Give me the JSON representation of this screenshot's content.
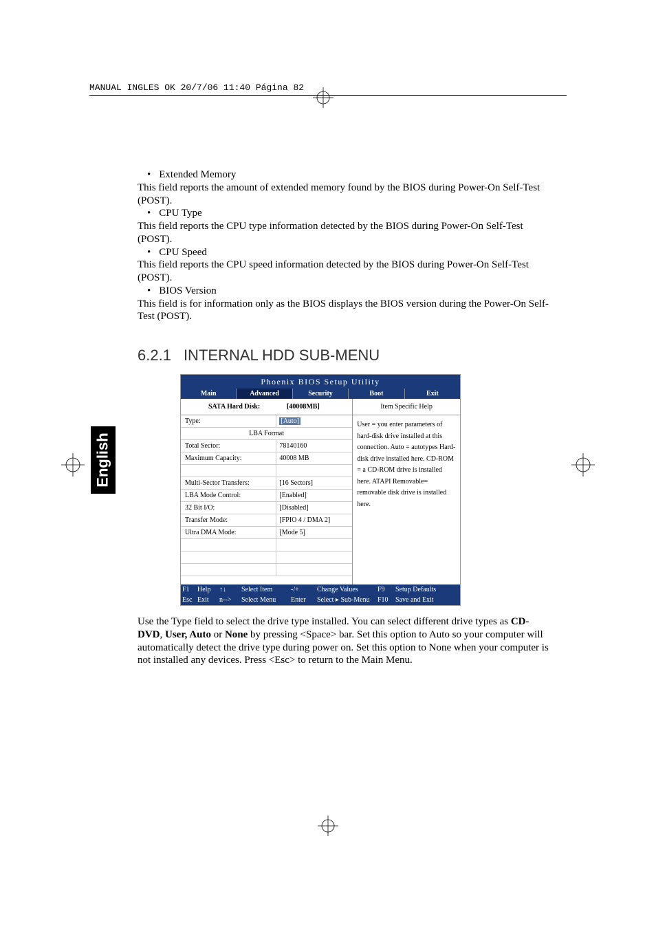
{
  "meta": {
    "header_line": "MANUAL INGLES OK  20/7/06  11:40  Página 82"
  },
  "colors": {
    "bios_blue": "#1a3a7a",
    "bios_dark": "#0d1f45",
    "bios_grid": "#cccccc",
    "bios_border": "#999999",
    "bios_arrow": "#5a7aa6",
    "tab_selected_bg": "#0b2252"
  },
  "intro": {
    "items": [
      {
        "bullet": "Extended Memory",
        "text": "This field reports the amount of extended memory found by the BIOS during Power-On Self-Test (POST)."
      },
      {
        "bullet": "CPU Type",
        "text": "This field reports the CPU type information detected by the BIOS during Power-On Self-Test (POST)."
      },
      {
        "bullet": "CPU Speed",
        "text": "This field reports the CPU speed information detected by the BIOS during Power-On Self-Test (POST)."
      },
      {
        "bullet": "BIOS Version",
        "text": "This field is for information only as the BIOS displays the BIOS version during the Power-On Self-Test (POST)."
      }
    ]
  },
  "section": {
    "num": "6.2.1",
    "title": "INTERNAL HDD SUB-MENU"
  },
  "lang_tab": "English",
  "bios": {
    "title": "Phoenix BIOS Setup Utility",
    "tabs": [
      "Main",
      "Advanced",
      "Security",
      "Boot",
      "Exit"
    ],
    "selected_tab": 1,
    "left_header_label": "SATA Hard Disk:",
    "left_header_value": "[40008MB]",
    "right_header": "Item Specific Help",
    "rows": [
      {
        "label": "Type:",
        "value": "[Auto]",
        "highlight": true
      },
      {
        "label": "LBA Format",
        "value": "",
        "center": true
      },
      {
        "label": "Total Sector:",
        "value": "78140160"
      },
      {
        "label": "Maximum Capacity:",
        "value": "40008 MB"
      },
      {
        "label": "",
        "value": ""
      },
      {
        "label": "Multi-Sector Transfers:",
        "value": "[16 Sectors]"
      },
      {
        "label": "LBA Mode Control:",
        "value": "[Enabled]"
      },
      {
        "label": "32 Bit I/O:",
        "value": "[Disabled]"
      },
      {
        "label": "Transfer Mode:",
        "value": "[FPIO 4 / DMA 2]"
      },
      {
        "label": "Ultra DMA Mode:",
        "value": "[Mode 5]"
      },
      {
        "label": "",
        "value": ""
      },
      {
        "label": "",
        "value": ""
      },
      {
        "label": "",
        "value": ""
      }
    ],
    "help_text": "User = you enter parameters of hard-disk drive installed at this connection. Auto = autotypes Hard-disk drive installed here. CD-ROM = a CD-ROM drive is installed here. ATAPI Removable= removable disk drive is installed here.",
    "footer": {
      "r1": [
        "F1",
        "Help",
        "↑↓",
        "Select Item",
        "-/+",
        "Change Values",
        "F9",
        "Setup Defaults"
      ],
      "r2": [
        "Esc",
        "Exit",
        "n-->",
        "Select Menu",
        "Enter",
        "Select ▸ Sub-Menu",
        "F10",
        "Save and Exit"
      ]
    }
  },
  "post": {
    "pre": "Use the Type field to select the drive type installed. You can select different drive types as ",
    "bold": "CD-DVD",
    "mid1": ", ",
    "bold2": "User, Auto",
    "mid2": " or ",
    "bold3": "None",
    "after": " by pressing <Space> bar. Set this option to Auto so your computer will automatically detect the drive type during power on. Set this option to None when your computer is not installed any devices. Press <Esc> to return to the Main Menu."
  }
}
